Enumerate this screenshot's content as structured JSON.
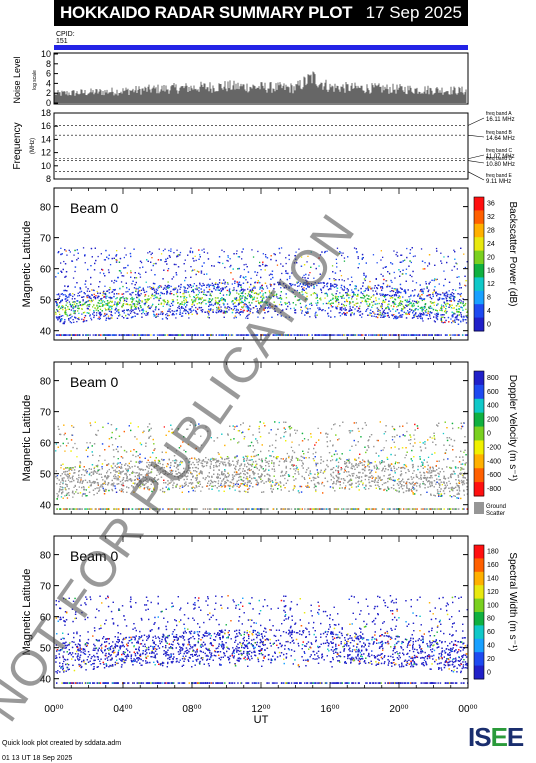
{
  "header": {
    "title": "HOKKAIDO RADAR SUMMARY PLOT",
    "date": "17 Sep 2025"
  },
  "cpid": {
    "label": "CPID:",
    "value": "151"
  },
  "noise": {
    "ylabel": "Noise Level",
    "ysublabel": "log scale",
    "yticks": [
      "10",
      "8",
      "6",
      "4",
      "2",
      "0"
    ]
  },
  "frequency": {
    "ylabel": "Frequency",
    "yunit": "(MHz)",
    "yticks": [
      "18",
      "16",
      "14",
      "12",
      "10",
      "8"
    ],
    "bands": [
      {
        "name": "freq band A",
        "freq": "16.11 MHz"
      },
      {
        "name": "freq band B",
        "freq": "14.64 MHz"
      },
      {
        "name": "freq band C",
        "freq": "11.07 MHz"
      },
      {
        "name": "freq band D",
        "freq": "10.80 MHz"
      },
      {
        "name": "freq band E",
        "freq": "9.11 MHz"
      }
    ]
  },
  "panels": [
    {
      "beam": "Beam  0",
      "ylabel": "Magnetic Latitude",
      "yticks": [
        "80",
        "70",
        "60",
        "50",
        "40"
      ],
      "cbar_label": "Backscatter Power (dB)",
      "cbar_ticks": [
        "36",
        "32",
        "28",
        "24",
        "20",
        "16",
        "12",
        "8",
        "4",
        "0"
      ]
    },
    {
      "beam": "Beam  0",
      "ylabel": "Magnetic Latitude",
      "yticks": [
        "80",
        "70",
        "60",
        "50",
        "40"
      ],
      "cbar_label": "Doppler Velocity (m s⁻¹)",
      "cbar_ticks": [
        "800",
        "600",
        "400",
        "200",
        "0",
        "-200",
        "-400",
        "-600",
        "-800"
      ],
      "ground_label1": "Ground",
      "ground_label2": "Scatter"
    },
    {
      "beam": "Beam  0",
      "ylabel": "Magnetic Latitude",
      "yticks": [
        "80",
        "70",
        "60",
        "50",
        "40"
      ],
      "cbar_label": "Spectral Width (m s⁻¹)",
      "cbar_ticks": [
        "180",
        "160",
        "140",
        "120",
        "100",
        "80",
        "60",
        "40",
        "20",
        "0"
      ]
    }
  ],
  "xaxis": {
    "label": "UT",
    "ticks": [
      "00⁰⁰",
      "04⁰⁰",
      "08⁰⁰",
      "12⁰⁰",
      "16⁰⁰",
      "20⁰⁰",
      "00⁰⁰"
    ]
  },
  "footer": {
    "line1": "Quick look plot created by sddata.adm",
    "line2": "01 13 UT 18 Sep 2025",
    "logo": "ISEE"
  },
  "watermark": "NOT FOR PUBLICATION",
  "colors": {
    "cpid_bar": "#2323e6",
    "ground_scatter": "#969696"
  },
  "chart_data": [
    {
      "type": "line",
      "title": "Noise Level",
      "ylabel": "Noise Level",
      "ylim": [
        0,
        10
      ],
      "xlim_hours": [
        0,
        24
      ],
      "x": [
        0,
        2,
        4,
        6,
        8,
        10,
        12,
        14,
        15,
        16,
        18,
        20,
        22,
        24
      ],
      "series": [
        {
          "values": [
            2.0,
            2.3,
            2.6,
            3.0,
            3.3,
            3.6,
            3.4,
            3.2,
            5.5,
            3.4,
            3.2,
            3.0,
            2.8,
            2.6
          ]
        }
      ]
    },
    {
      "type": "line",
      "title": "Frequency",
      "ylabel": "Frequency",
      "ylim": [
        8,
        18
      ],
      "series": [
        {
          "name": "freq band A",
          "values": [
            16.11
          ]
        },
        {
          "name": "freq band B",
          "values": [
            14.64
          ]
        },
        {
          "name": "freq band C",
          "values": [
            11.07
          ]
        },
        {
          "name": "freq band D",
          "values": [
            10.8
          ]
        },
        {
          "name": "freq band E",
          "values": [
            9.11
          ]
        }
      ]
    },
    {
      "type": "heatmap",
      "title": "Backscatter Power (dB)",
      "ylabel": "Magnetic Latitude",
      "xlabel": "UT",
      "ylim": [
        37,
        86
      ],
      "zlim": [
        0,
        36
      ]
    },
    {
      "type": "heatmap",
      "title": "Doppler Velocity",
      "ylabel": "Magnetic Latitude",
      "xlabel": "UT",
      "ylim": [
        37,
        86
      ],
      "zlim": [
        -800,
        800
      ]
    },
    {
      "type": "heatmap",
      "title": "Spectral Width",
      "ylabel": "Magnetic Latitude",
      "xlabel": "UT",
      "ylim": [
        37,
        86
      ],
      "zlim": [
        0,
        180
      ]
    }
  ]
}
